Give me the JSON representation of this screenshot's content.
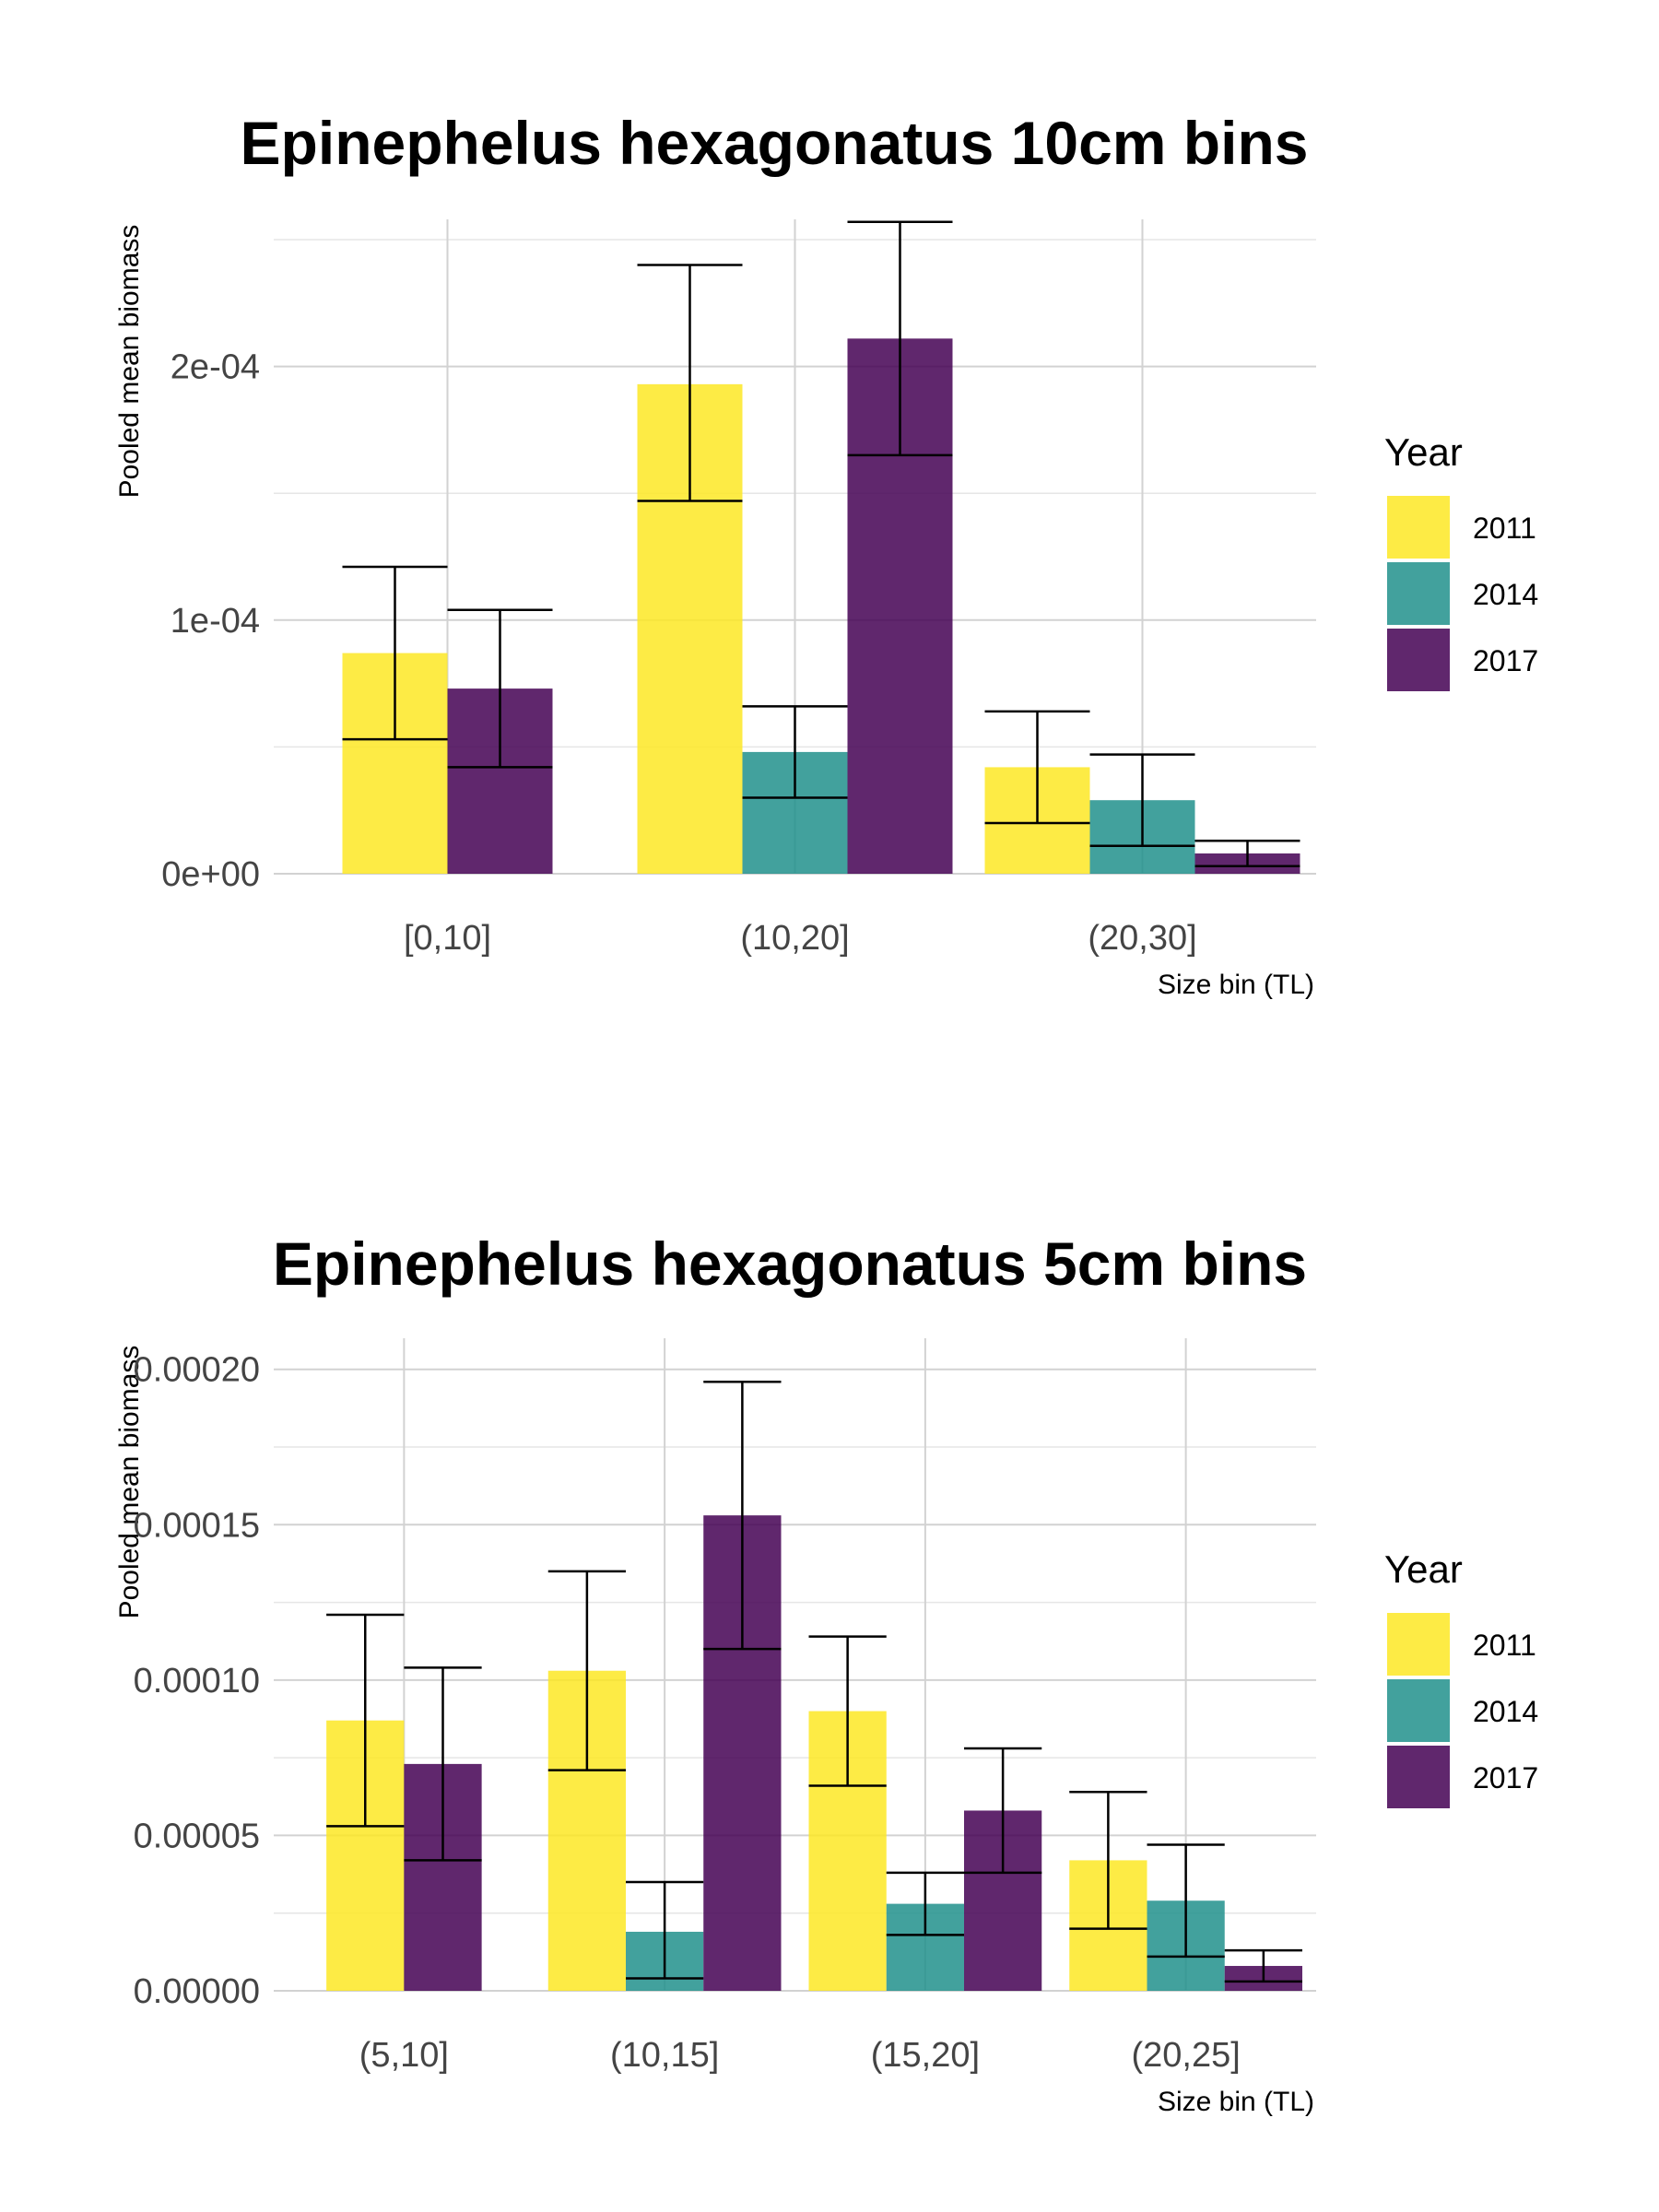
{
  "chart_data": [
    {
      "type": "bar",
      "title": "Epinephelus hexagonatus 10cm bins",
      "xlabel": "Size bin (TL)",
      "ylabel": "Pooled mean biomass",
      "categories": [
        "[0,10]",
        "(10,20]",
        "(20,30]"
      ],
      "ylim": [
        0,
        0.000258
      ],
      "y_ticks": [
        0,
        0.0001,
        0.0002
      ],
      "y_tick_labels": [
        "0e+00",
        "1e-04",
        "2e-04"
      ],
      "grid": true,
      "legend": {
        "title": "Year",
        "position": "right"
      },
      "series": [
        {
          "name": "2011",
          "color": "#FDE725",
          "values": [
            8.7e-05,
            0.000193,
            4.2e-05
          ],
          "err_low": [
            5.3e-05,
            0.000147,
            2e-05
          ],
          "err_high": [
            0.000121,
            0.00024,
            6.4e-05
          ]
        },
        {
          "name": "2014",
          "color": "#21908C",
          "values": [
            null,
            4.8e-05,
            2.9e-05
          ],
          "err_low": [
            null,
            3e-05,
            1.1e-05
          ],
          "err_high": [
            null,
            6.6e-05,
            4.7e-05
          ]
        },
        {
          "name": "2017",
          "color": "#440154",
          "values": [
            7.3e-05,
            0.000211,
            8e-06
          ],
          "err_low": [
            4.2e-05,
            0.000165,
            3e-06
          ],
          "err_high": [
            0.000104,
            0.000257,
            1.3e-05
          ]
        }
      ]
    },
    {
      "type": "bar",
      "title": "Epinephelus hexagonatus 5cm bins",
      "xlabel": "Size bin (TL)",
      "ylabel": "Pooled mean biomass",
      "categories": [
        "(5,10]",
        "(10,15]",
        "(15,20]",
        "(20,25]"
      ],
      "ylim": [
        0,
        0.00021
      ],
      "y_ticks": [
        0,
        5e-05,
        0.0001,
        0.00015,
        0.0002
      ],
      "y_tick_labels": [
        "0.00000",
        "0.00005",
        "0.00010",
        "0.00015",
        "0.00020"
      ],
      "grid": true,
      "legend": {
        "title": "Year",
        "position": "right"
      },
      "series": [
        {
          "name": "2011",
          "color": "#FDE725",
          "values": [
            8.7e-05,
            0.000103,
            9e-05,
            4.2e-05
          ],
          "err_low": [
            5.3e-05,
            7.1e-05,
            6.6e-05,
            2e-05
          ],
          "err_high": [
            0.000121,
            0.000135,
            0.000114,
            6.4e-05
          ]
        },
        {
          "name": "2014",
          "color": "#21908C",
          "values": [
            null,
            1.9e-05,
            2.8e-05,
            2.9e-05
          ],
          "err_low": [
            null,
            4e-06,
            1.8e-05,
            1.1e-05
          ],
          "err_high": [
            null,
            3.5e-05,
            3.8e-05,
            4.7e-05
          ]
        },
        {
          "name": "2017",
          "color": "#440154",
          "values": [
            7.3e-05,
            0.000153,
            5.8e-05,
            8e-06
          ],
          "err_low": [
            4.2e-05,
            0.00011,
            3.8e-05,
            3e-06
          ],
          "err_high": [
            0.000104,
            0.000196,
            7.8e-05,
            1.3e-05
          ]
        }
      ]
    }
  ]
}
